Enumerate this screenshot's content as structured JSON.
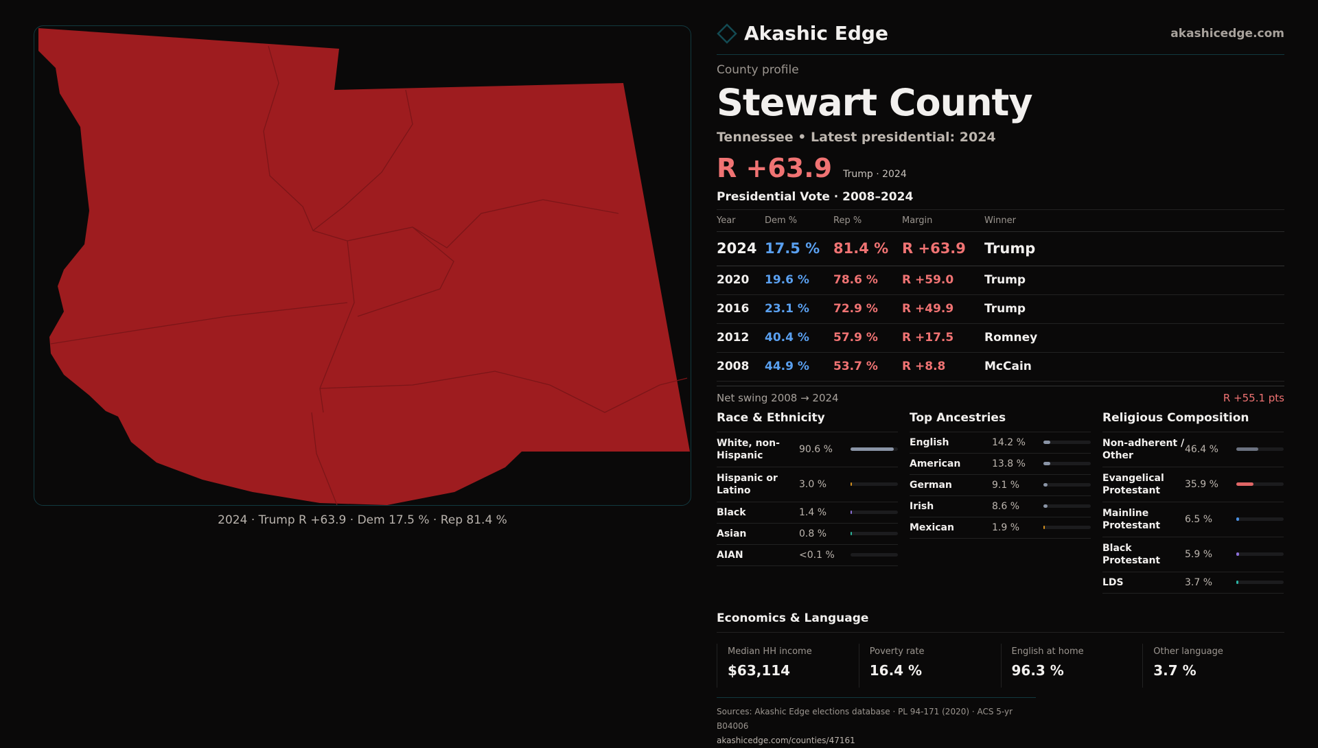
{
  "map": {
    "fill": "#9e1c1f",
    "caption": "2024 · Trump R +63.9 · Dem 17.5 % · Rep 81.4 %"
  },
  "header": {
    "brand": "Akashic Edge",
    "site": "akashicedge.com",
    "accent": "#123a40"
  },
  "profile": {
    "kicker": "County profile",
    "title": "Stewart County",
    "subtitle": "Tennessee • Latest presidential: 2024",
    "margin": "R +63.9",
    "margin_note": "Trump · 2024"
  },
  "vote": {
    "heading": "Presidential Vote · 2008–2024",
    "columns": [
      "Year",
      "Dem %",
      "Rep %",
      "Margin",
      "Winner"
    ],
    "rows": [
      [
        "2024",
        "17.5 %",
        "81.4 %",
        "R +63.9",
        "Trump"
      ],
      [
        "2020",
        "19.6 %",
        "78.6 %",
        "R +59.0",
        "Trump"
      ],
      [
        "2016",
        "23.1 %",
        "72.9 %",
        "R +49.9",
        "Trump"
      ],
      [
        "2012",
        "40.4 %",
        "57.9 %",
        "R +17.5",
        "Romney"
      ],
      [
        "2008",
        "44.9 %",
        "53.7 %",
        "R +8.8",
        "McCain"
      ]
    ],
    "swing_label": "Net swing 2008 → 2024",
    "swing_value": "R +55.1 pts"
  },
  "race": {
    "title": "Race & Ethnicity",
    "items": [
      {
        "label": "White, non-Hispanic",
        "value": "90.6 %",
        "pct": 90.6,
        "color": "#8a94a6"
      },
      {
        "label": "Hispanic or Latino",
        "value": "3.0 %",
        "pct": 3.0,
        "color": "#d4901e"
      },
      {
        "label": "Black",
        "value": "1.4 %",
        "pct": 1.4,
        "color": "#8b6fd6"
      },
      {
        "label": "Asian",
        "value": "0.8 %",
        "pct": 0.8,
        "color": "#2bb59a"
      },
      {
        "label": "AIAN",
        "value": "<0.1 %",
        "pct": 0,
        "color": "#8a94a6"
      }
    ]
  },
  "ancestry": {
    "title": "Top Ancestries",
    "items": [
      {
        "label": "English",
        "value": "14.2 %",
        "pct": 14.2,
        "color": "#8a94a6"
      },
      {
        "label": "American",
        "value": "13.8 %",
        "pct": 13.8,
        "color": "#8a94a6"
      },
      {
        "label": "German",
        "value": "9.1 %",
        "pct": 9.1,
        "color": "#8a94a6"
      },
      {
        "label": "Irish",
        "value": "8.6 %",
        "pct": 8.6,
        "color": "#8a94a6"
      },
      {
        "label": "Mexican",
        "value": "1.9 %",
        "pct": 1.9,
        "color": "#d4901e"
      }
    ]
  },
  "religion": {
    "title": "Religious Composition",
    "items": [
      {
        "label": "Non-adherent / Other",
        "value": "46.4 %",
        "pct": 46.4,
        "color": "#6b7280"
      },
      {
        "label": "Evangelical Protestant",
        "value": "35.9 %",
        "pct": 35.9,
        "color": "#e06666"
      },
      {
        "label": "Mainline Protestant",
        "value": "6.5 %",
        "pct": 6.5,
        "color": "#4a90e2"
      },
      {
        "label": "Black Protestant",
        "value": "5.9 %",
        "pct": 5.9,
        "color": "#8b6fd6"
      },
      {
        "label": "LDS",
        "value": "3.7 %",
        "pct": 3.7,
        "color": "#2bb5a5"
      }
    ]
  },
  "economics": {
    "title": "Economics & Language",
    "cards": [
      {
        "label": "Median HH income",
        "value": "$63,114"
      },
      {
        "label": "Poverty rate",
        "value": "16.4 %"
      },
      {
        "label": "English at home",
        "value": "96.3 %"
      },
      {
        "label": "Other language",
        "value": "3.7 %"
      }
    ]
  },
  "footer": {
    "sources": "Sources: Akashic Edge elections database · PL 94-171 (2020) · ACS 5-yr B04006",
    "url": "akashicedge.com/counties/47161"
  }
}
